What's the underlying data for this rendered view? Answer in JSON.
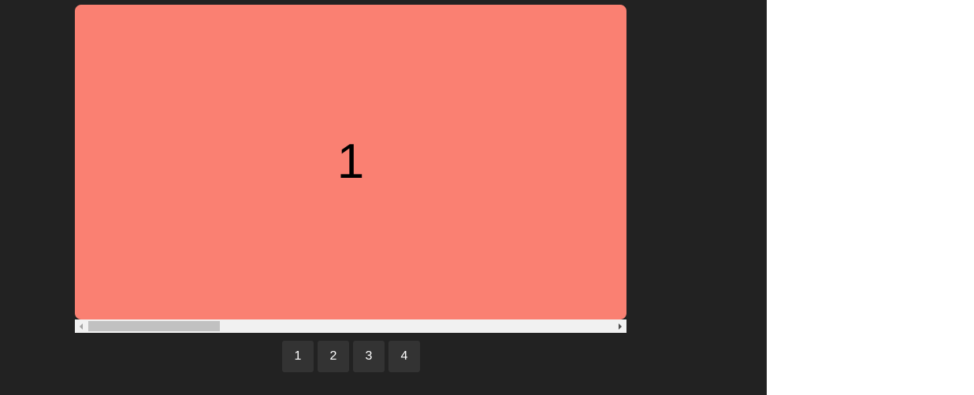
{
  "carousel": {
    "slide": {
      "label": "1",
      "color": "#fa8072"
    },
    "pagination": [
      "1",
      "2",
      "3",
      "4"
    ]
  },
  "colors": {
    "stage_background": "#222222",
    "page_background": "#ffffff",
    "pager_button": "#333333",
    "scroll_track": "#f1f1f1",
    "scroll_thumb": "#c1c1c1"
  },
  "icons": {
    "scroll_left": "triangle-left-icon",
    "scroll_right": "triangle-right-icon"
  }
}
